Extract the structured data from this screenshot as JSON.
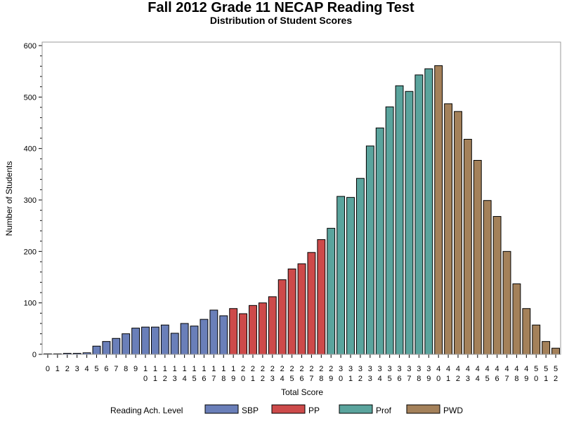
{
  "chart_data": {
    "type": "bar",
    "title": "Fall 2012 Grade 11 NECAP Reading Test",
    "subtitle": "Distribution of Student Scores",
    "xlabel": "Total Score",
    "ylabel": "Number of Students",
    "ylim": [
      0,
      600
    ],
    "yticks": [
      0,
      100,
      200,
      300,
      400,
      500,
      600
    ],
    "categories": [
      "0",
      "1",
      "2",
      "3",
      "4",
      "5",
      "6",
      "7",
      "8",
      "9",
      "10",
      "11",
      "12",
      "13",
      "14",
      "15",
      "16",
      "17",
      "18",
      "19",
      "20",
      "21",
      "22",
      "23",
      "24",
      "25",
      "26",
      "27",
      "28",
      "29",
      "30",
      "31",
      "32",
      "33",
      "34",
      "35",
      "36",
      "37",
      "38",
      "39",
      "40",
      "41",
      "42",
      "43",
      "44",
      "45",
      "46",
      "47",
      "48",
      "49",
      "50",
      "51",
      "52"
    ],
    "values": [
      1,
      1,
      2,
      2,
      3,
      16,
      25,
      31,
      40,
      51,
      53,
      53,
      57,
      41,
      60,
      55,
      68,
      86,
      75,
      89,
      79,
      95,
      100,
      112,
      145,
      166,
      176,
      198,
      223,
      245,
      307,
      305,
      342,
      405,
      440,
      481,
      522,
      511,
      543,
      555,
      561,
      487,
      472,
      418,
      377,
      299,
      268,
      200,
      137,
      89,
      57,
      25,
      12
    ],
    "levels": [
      "SBP",
      "SBP",
      "SBP",
      "SBP",
      "SBP",
      "SBP",
      "SBP",
      "SBP",
      "SBP",
      "SBP",
      "SBP",
      "SBP",
      "SBP",
      "SBP",
      "SBP",
      "SBP",
      "SBP",
      "SBP",
      "SBP",
      "PP",
      "PP",
      "PP",
      "PP",
      "PP",
      "PP",
      "PP",
      "PP",
      "PP",
      "PP",
      "Prof",
      "Prof",
      "Prof",
      "Prof",
      "Prof",
      "Prof",
      "Prof",
      "Prof",
      "Prof",
      "Prof",
      "Prof",
      "PWD",
      "PWD",
      "PWD",
      "PWD",
      "PWD",
      "PWD",
      "PWD",
      "PWD",
      "PWD",
      "PWD",
      "PWD",
      "PWD",
      "PWD"
    ],
    "legend": {
      "title": "Reading Ach. Level",
      "position": "bottom",
      "items": [
        {
          "name": "SBP",
          "color": "#6a7fb9"
        },
        {
          "name": "PP",
          "color": "#cd4a4a"
        },
        {
          "name": "Prof",
          "color": "#5aa49d"
        },
        {
          "name": "PWD",
          "color": "#a4815a"
        }
      ]
    },
    "grid": false
  }
}
